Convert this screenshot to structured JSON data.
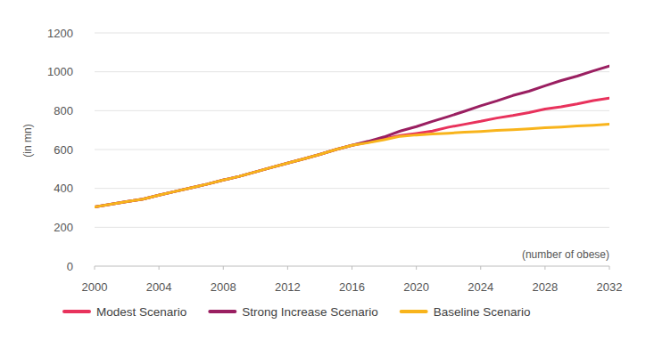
{
  "chart_data": {
    "type": "line",
    "y_label": "(in mn)",
    "annotation": "(number of obese)",
    "x": [
      2000,
      2001,
      2002,
      2003,
      2004,
      2005,
      2006,
      2007,
      2008,
      2009,
      2010,
      2011,
      2012,
      2013,
      2014,
      2015,
      2016,
      2017,
      2018,
      2019,
      2020,
      2021,
      2022,
      2023,
      2024,
      2025,
      2026,
      2027,
      2028,
      2029,
      2030,
      2031,
      2032
    ],
    "series": [
      {
        "name": "Modest Scenario",
        "color": "#e8325c",
        "values": [
          305,
          318,
          332,
          345,
          365,
          384,
          403,
          422,
          443,
          462,
          485,
          508,
          530,
          552,
          575,
          600,
          622,
          638,
          655,
          672,
          683,
          695,
          715,
          730,
          745,
          762,
          775,
          790,
          808,
          820,
          835,
          852,
          865
        ]
      },
      {
        "name": "Strong Increase Scenario",
        "color": "#9a1f61",
        "values": [
          305,
          318,
          332,
          345,
          365,
          384,
          403,
          422,
          443,
          462,
          485,
          508,
          530,
          552,
          575,
          600,
          622,
          642,
          665,
          695,
          718,
          745,
          770,
          797,
          825,
          850,
          878,
          900,
          928,
          955,
          978,
          1005,
          1030
        ]
      },
      {
        "name": "Baseline Scenario",
        "color": "#f8b41c",
        "values": [
          305,
          318,
          332,
          345,
          365,
          384,
          403,
          422,
          443,
          462,
          485,
          508,
          530,
          552,
          575,
          600,
          622,
          635,
          650,
          668,
          675,
          680,
          684,
          689,
          693,
          698,
          702,
          707,
          712,
          716,
          721,
          725,
          730
        ]
      }
    ],
    "xlim": [
      2000,
      2032
    ],
    "xticks": [
      2000,
      2004,
      2008,
      2012,
      2016,
      2020,
      2024,
      2028,
      2032
    ],
    "ylim": [
      0,
      1200
    ],
    "yticks": [
      0,
      200,
      400,
      600,
      800,
      1000,
      1200
    ],
    "grid": true,
    "legend": "bottom"
  }
}
